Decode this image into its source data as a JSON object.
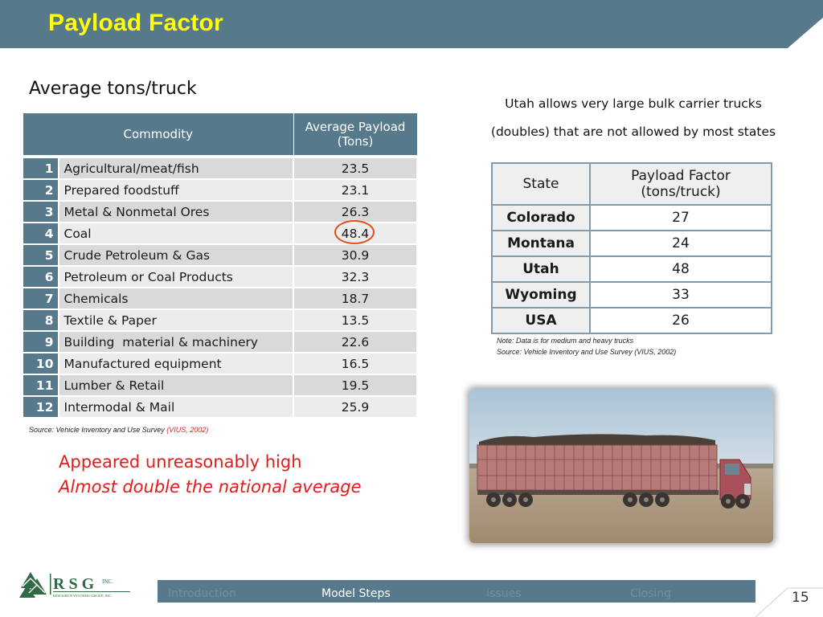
{
  "slide": {
    "title": "Payload Factor",
    "subtitle": "Average tons/truck",
    "page_number": "15"
  },
  "commodity_table": {
    "headers": [
      "Commodity",
      "Average Payload (Tons)"
    ],
    "rows": [
      {
        "num": "1",
        "name": "Agricultural/meat/fish",
        "value": "23.5"
      },
      {
        "num": "2",
        "name": "Prepared foodstuff",
        "value": "23.1"
      },
      {
        "num": "3",
        "name": "Metal & Nonmetal Ores",
        "value": "26.3"
      },
      {
        "num": "4",
        "name": "Coal",
        "value": "48.4"
      },
      {
        "num": "5",
        "name": "Crude Petroleum & Gas",
        "value": "30.9"
      },
      {
        "num": "6",
        "name": "Petroleum or Coal Products",
        "value": "32.3"
      },
      {
        "num": "7",
        "name": "Chemicals",
        "value": "18.7"
      },
      {
        "num": "8",
        "name": "Textile & Paper",
        "value": "13.5"
      },
      {
        "num": "9",
        "name": "Building  material & machinery",
        "value": "22.6"
      },
      {
        "num": "10",
        "name": "Manufactured equipment",
        "value": "16.5"
      },
      {
        "num": "11",
        "name": "Lumber & Retail",
        "value": "19.5"
      },
      {
        "num": "12",
        "name": "Intermodal & Mail",
        "value": "25.9"
      }
    ],
    "source_prefix": "Source: Vehicle Inventory and Use Survey ",
    "source_highlight": "(VIUS, 2002)"
  },
  "callouts": {
    "line1": "Appeared unreasonably high",
    "line2": "Almost double the national average"
  },
  "utah_note": {
    "line1": "Utah allows very large bulk carrier trucks",
    "line2": "(doubles) that are not allowed by most states"
  },
  "state_table": {
    "headers": [
      "State",
      "Payload Factor (tons/truck)"
    ],
    "rows": [
      {
        "state": "Colorado",
        "value": "27"
      },
      {
        "state": "Montana",
        "value": "24"
      },
      {
        "state": "Utah",
        "value": "48"
      },
      {
        "state": "Wyoming",
        "value": "33"
      },
      {
        "state": "USA",
        "value": "26"
      }
    ],
    "note": "Note: Data is for medium and heavy trucks",
    "source_prefix": "Source: Vehicle Inventory and Use Survey ",
    "source_highlight": "(VIUS, 2002)"
  },
  "logo": {
    "letters": "R S G",
    "suffix": "INC.",
    "tagline": "RESOURCE SYSTEMS GROUP, INC."
  },
  "footer_nav": [
    "Introduction",
    "Model Steps",
    "Issues",
    "Closing"
  ],
  "colors": {
    "header_band": "#56798c",
    "title": "#ffff00",
    "highlight_red": "#e31b1b",
    "circle": "#e84c1b"
  }
}
